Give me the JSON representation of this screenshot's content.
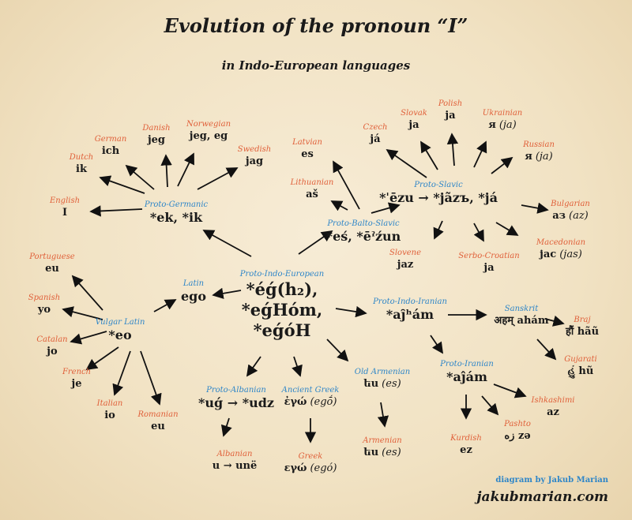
{
  "title": "Evolution of the pronoun “I”",
  "subtitle": "in Indo-European languages",
  "colors": {
    "proto_label": "#2f86c8",
    "modern_label": "#e0603a",
    "background": "#f3e6cc",
    "text": "#1a1a1a"
  },
  "nodes": {
    "pie": {
      "label": "Proto-Indo-European",
      "lines": [
        "*éǵ(h₂),",
        "*eǵHóm,",
        "*eǵóH"
      ]
    },
    "latin": {
      "label": "Latin",
      "word": "ego"
    },
    "vulgar_latin": {
      "label": "Vulgar Latin",
      "word": "*eo"
    },
    "portuguese": {
      "label": "Portuguese",
      "word": "eu"
    },
    "spanish": {
      "label": "Spanish",
      "word": "yo"
    },
    "catalan": {
      "label": "Catalan",
      "word": "jo"
    },
    "french": {
      "label": "French",
      "word": "je"
    },
    "italian": {
      "label": "Italian",
      "word": "io"
    },
    "romanian": {
      "label": "Romanian",
      "word": "eu"
    },
    "proto_germanic": {
      "label": "Proto-Germanic",
      "word": "*ek, *ik"
    },
    "english": {
      "label": "English",
      "word": "I"
    },
    "dutch": {
      "label": "Dutch",
      "word": "ik"
    },
    "german": {
      "label": "German",
      "word": "ich"
    },
    "danish": {
      "label": "Danish",
      "word": "jeg"
    },
    "norwegian": {
      "label": "Norwegian",
      "word": "jeg, eg"
    },
    "swedish": {
      "label": "Swedish",
      "word": "jag"
    },
    "latvian": {
      "label": "Latvian",
      "word": "es"
    },
    "lithuanian": {
      "label": "Lithuanian",
      "word": "aš"
    },
    "proto_balto_slavic": {
      "label": "Proto-Balto-Slavic",
      "word": "*eś, *ēˀźun"
    },
    "proto_slavic": {
      "label": "Proto-Slavic",
      "word": "*ˈēzu → *jãzъ, *já"
    },
    "czech": {
      "label": "Czech",
      "word": "já"
    },
    "slovak": {
      "label": "Slovak",
      "word": "ja"
    },
    "polish": {
      "label": "Polish",
      "word": "ja"
    },
    "ukrainian": {
      "label": "Ukrainian",
      "word": "я",
      "translit": "(ja)"
    },
    "russian": {
      "label": "Russian",
      "word": "я",
      "translit": "(ja)"
    },
    "bulgarian": {
      "label": "Bulgarian",
      "word": "аз",
      "translit": "(az)"
    },
    "macedonian": {
      "label": "Macedonian",
      "word": "јас",
      "translit": "(jas)"
    },
    "slovene": {
      "label": "Slovene",
      "word": "jaz"
    },
    "serbo_croatian": {
      "label": "Serbo-Croatian",
      "word": "ja"
    },
    "proto_indo_iranian": {
      "label": "Proto-Indo-Iranian",
      "word": "*aj̑ʰám"
    },
    "sanskrit": {
      "label": "Sanskrit",
      "word": "अहम् ahám"
    },
    "braj": {
      "label": "Braj",
      "word": "हौं hãũ"
    },
    "gujarati": {
      "label": "Gujarati",
      "word": "હું hũ"
    },
    "proto_iranian": {
      "label": "Proto-Iranian",
      "word": "*aĵám"
    },
    "ishkashimi": {
      "label": "Ishkashimi",
      "word": "az"
    },
    "pashto": {
      "label": "Pashto",
      "word": "زه zə"
    },
    "kurdish": {
      "label": "Kurdish",
      "word": "ez"
    },
    "old_armenian": {
      "label": "Old Armenian",
      "word": "ես",
      "translit": "(es)"
    },
    "armenian": {
      "label": "Armenian",
      "word": "ես",
      "translit": "(es)"
    },
    "proto_albanian": {
      "label": "Proto-Albanian",
      "word": "*uǵ → *udz"
    },
    "albanian": {
      "label": "Albanian",
      "word": "u → unë"
    },
    "ancient_greek": {
      "label": "Ancient Greek",
      "word": "ἐγώ",
      "translit": "(egṓ)"
    },
    "greek": {
      "label": "Greek",
      "word": "εγώ",
      "translit": "(egó)"
    }
  },
  "credit": {
    "author": "diagram by Jakub Marian",
    "site": "jakubmarian.com"
  }
}
